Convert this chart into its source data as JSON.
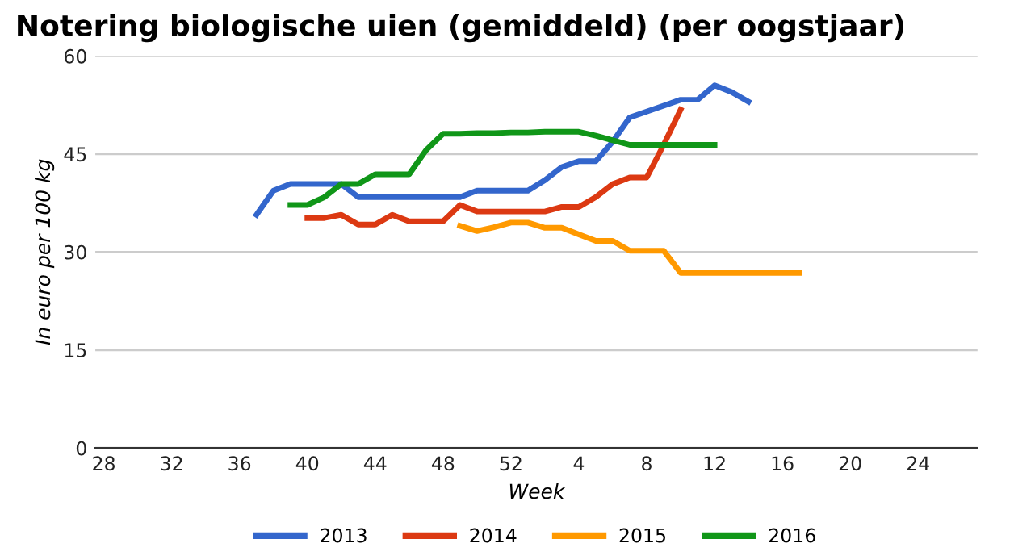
{
  "chart_data": {
    "type": "line",
    "title": "Notering biologische uien (gemiddeld) (per oogstjaar)",
    "xlabel": "Week",
    "ylabel": "In euro per 100 kg",
    "categories": [
      "28",
      null,
      null,
      null,
      "32",
      null,
      null,
      null,
      "36",
      null,
      null,
      null,
      "40",
      null,
      null,
      null,
      "44",
      null,
      null,
      null,
      "48",
      null,
      null,
      null,
      "52",
      null,
      null,
      null,
      "4",
      null,
      null,
      null,
      "8",
      null,
      null,
      null,
      "12",
      null,
      null,
      null,
      "16",
      null,
      null,
      null,
      "20",
      null,
      null,
      null,
      "24",
      null,
      null,
      null
    ],
    "ylim": [
      0,
      60
    ],
    "yticks": [
      0,
      15,
      30,
      45,
      60
    ],
    "grid": "y",
    "legend": "bottom",
    "marker": "none",
    "line_style": "solid",
    "series": [
      {
        "name": "2013",
        "color": "#3366cc",
        "values": [
          null,
          null,
          null,
          null,
          null,
          null,
          null,
          null,
          null,
          35.7,
          39.4,
          40.4,
          40.4,
          40.4,
          40.4,
          38.4,
          38.4,
          38.4,
          38.4,
          38.4,
          38.4,
          38.4,
          39.4,
          39.4,
          39.4,
          39.4,
          41,
          43,
          43.9,
          43.9,
          46.9,
          50.6,
          51.5,
          52.4,
          53.3,
          53.3,
          55.5,
          54.5,
          53,
          null,
          null,
          null,
          null,
          null,
          null,
          null,
          null,
          null,
          null,
          null,
          null,
          null
        ]
      },
      {
        "name": "2014",
        "color": "#dc3912",
        "values": [
          null,
          null,
          null,
          null,
          null,
          null,
          null,
          null,
          null,
          null,
          null,
          null,
          35.2,
          35.2,
          35.7,
          34.2,
          34.2,
          35.7,
          34.7,
          34.7,
          34.7,
          37.2,
          36.2,
          36.2,
          36.2,
          36.2,
          36.2,
          36.9,
          36.9,
          38.4,
          40.4,
          41.4,
          41.4,
          46.4,
          51.8,
          null,
          null,
          null,
          null,
          null,
          null,
          null,
          null,
          null,
          null,
          null,
          null,
          null,
          null,
          null,
          null,
          null
        ]
      },
      {
        "name": "2015",
        "color": "#ff9900",
        "values": [
          null,
          null,
          null,
          null,
          null,
          null,
          null,
          null,
          null,
          null,
          null,
          null,
          null,
          null,
          null,
          null,
          null,
          null,
          null,
          null,
          null,
          34,
          33.2,
          33.8,
          34.5,
          34.5,
          33.7,
          33.7,
          32.7,
          31.7,
          31.7,
          30.2,
          30.2,
          30.2,
          26.8,
          26.8,
          26.8,
          26.8,
          26.8,
          26.8,
          26.8,
          26.8,
          null,
          null,
          null,
          null,
          null,
          null,
          null,
          null,
          null,
          null
        ]
      },
      {
        "name": "2016",
        "color": "#109618",
        "values": [
          null,
          null,
          null,
          null,
          null,
          null,
          null,
          null,
          null,
          null,
          null,
          37.2,
          37.2,
          38.4,
          40.4,
          40.4,
          41.9,
          41.9,
          41.9,
          45.6,
          48.1,
          48.1,
          48.2,
          48.2,
          48.3,
          48.3,
          48.4,
          48.4,
          48.4,
          47.8,
          47.1,
          46.4,
          46.4,
          46.4,
          46.4,
          46.4,
          46.4,
          null,
          null,
          null,
          null,
          null,
          null,
          null,
          null,
          null,
          null,
          null,
          null,
          null,
          null,
          null
        ]
      }
    ]
  }
}
